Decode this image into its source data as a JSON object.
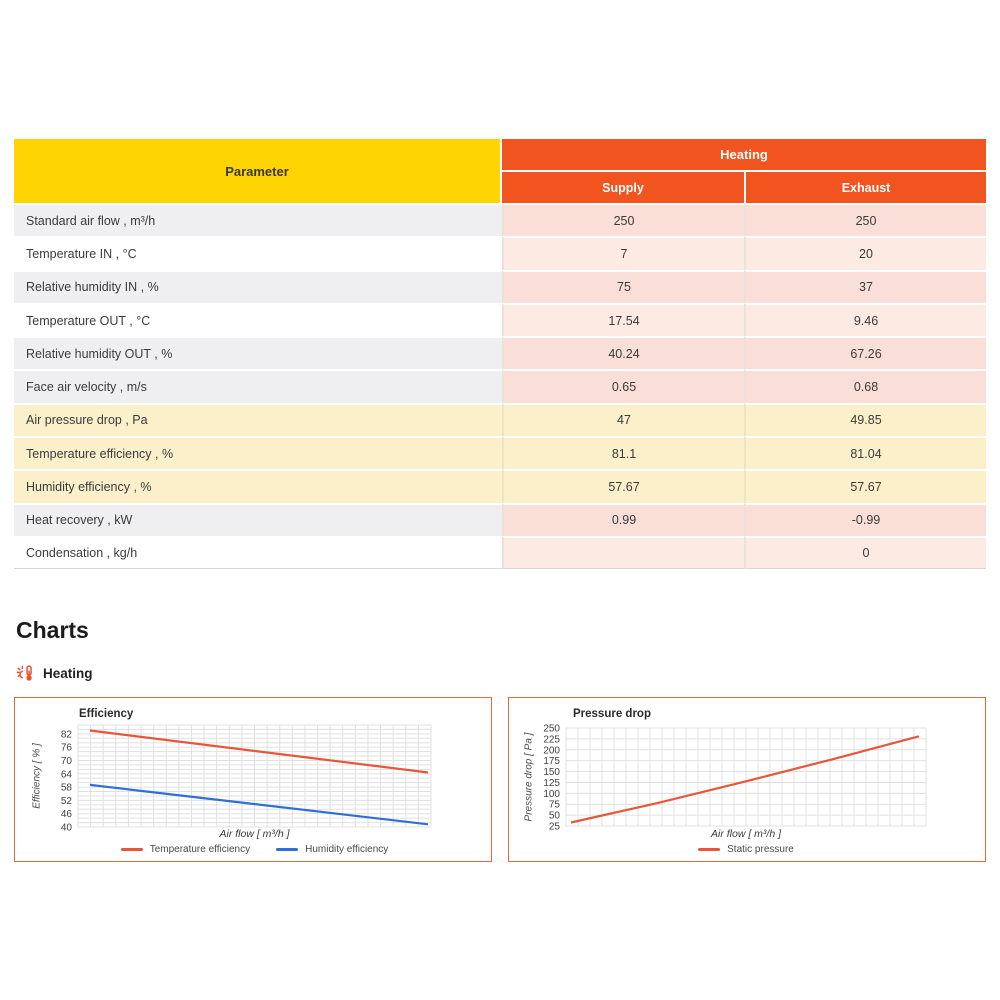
{
  "table": {
    "param_header": "Parameter",
    "group_header": "Heating",
    "col_headers": [
      "Supply",
      "Exhaust"
    ],
    "rows": [
      {
        "param": "Standard air flow , m³/h",
        "supply": "250",
        "exhaust": "250",
        "tone": "gray"
      },
      {
        "param": "Temperature IN , °C",
        "supply": "7",
        "exhaust": "20",
        "tone": "white"
      },
      {
        "param": "Relative humidity IN , %",
        "supply": "75",
        "exhaust": "37",
        "tone": "gray"
      },
      {
        "param": "Temperature OUT , °C",
        "supply": "17.54",
        "exhaust": "9.46",
        "tone": "white"
      },
      {
        "param": "Relative humidity OUT , %",
        "supply": "40.24",
        "exhaust": "67.26",
        "tone": "gray"
      },
      {
        "param": "Face air velocity , m/s",
        "supply": "0.65",
        "exhaust": "0.68",
        "tone": "gray"
      },
      {
        "param": "Air pressure drop , Pa",
        "supply": "47",
        "exhaust": "49.85",
        "tone": "yellow"
      },
      {
        "param": "Temperature efficiency , %",
        "supply": "81.1",
        "exhaust": "81.04",
        "tone": "yellow"
      },
      {
        "param": "Humidity efficiency , %",
        "supply": "57.67",
        "exhaust": "57.67",
        "tone": "yellow"
      },
      {
        "param": "Heat recovery , kW",
        "supply": "0.99",
        "exhaust": "-0.99",
        "tone": "gray"
      },
      {
        "param": "Condensation , kg/h",
        "supply": "",
        "exhaust": "0",
        "tone": "white"
      }
    ]
  },
  "section": {
    "title": "Charts",
    "subsection": "Heating",
    "icon": "thermometer-sun-icon"
  },
  "colors": {
    "header_yellow": "#FFD402",
    "header_orange": "#F1541F",
    "row_gray": "#EFEFF1",
    "row_yellow": "#FBF0CA",
    "value_peach_dark": "#F9DFD7",
    "value_peach_light": "#FCEAE3",
    "chart_border": "#E8693C",
    "grid_line": "#E0E0E0",
    "series_red": "#E6573A",
    "series_blue": "#2F6FD6",
    "accent_icon": "#E8552F"
  },
  "chart_data": [
    {
      "type": "line",
      "title": "Efficiency",
      "xlabel": "Air flow [ m³/h ]",
      "ylabel": "Efficiency [ % ]",
      "ylim": [
        40,
        86
      ],
      "yticks": [
        82,
        76,
        70,
        64,
        58,
        52,
        46,
        40
      ],
      "grid_step": 2,
      "grid": true,
      "x_tick_labels": "none",
      "legend_position": "bottom",
      "series": [
        {
          "name": "Temperature efficiency",
          "color": "#E6573A",
          "x": [
            0,
            1
          ],
          "values": [
            83.5,
            64.6
          ]
        },
        {
          "name": "Humidity efficiency",
          "color": "#2F6FD6",
          "x": [
            0,
            1
          ],
          "values": [
            59.0,
            41.2
          ]
        }
      ]
    },
    {
      "type": "line",
      "title": "Pressure drop",
      "xlabel": "Air flow [ m³/h ]",
      "ylabel": "Pressure drop [ Pa ]",
      "ylim": [
        25,
        250
      ],
      "yticks": [
        250,
        225,
        200,
        175,
        150,
        125,
        100,
        75,
        50,
        25
      ],
      "grid_step": 25,
      "grid": true,
      "x_tick_labels": "none",
      "legend_position": "bottom",
      "series": [
        {
          "name": "Static pressure",
          "color": "#E6573A",
          "x": [
            0,
            0.25,
            0.5,
            0.75,
            1
          ],
          "values": [
            33,
            78,
            127,
            178,
            231
          ]
        }
      ]
    }
  ]
}
